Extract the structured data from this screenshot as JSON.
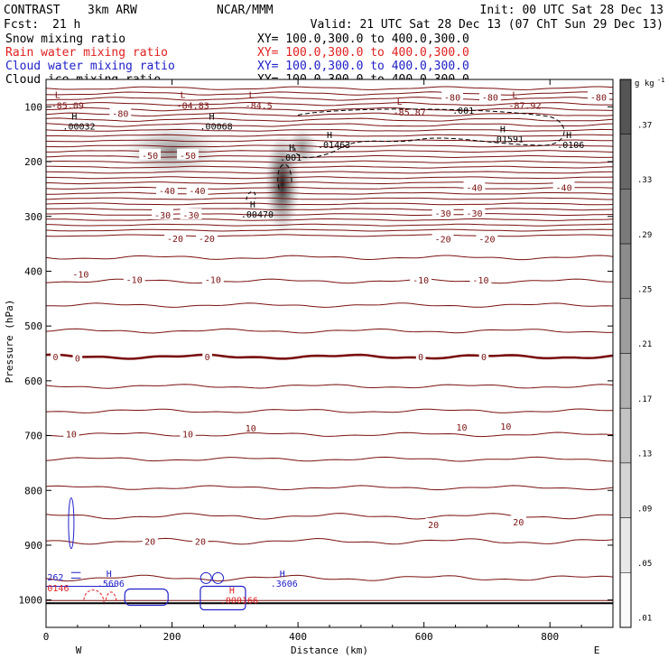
{
  "header": {
    "model": "CONTRAST",
    "grid": "3km ARW",
    "org": "NCAR/MMM",
    "init": "Init: 00 UTC Sat 28 Dec 13",
    "fcst_label": "Fcst:",
    "fcst_value": "21 h",
    "valid": "Valid: 21 UTC Sat 28 Dec 13 (07 ChT Sun 29 Dec 13)"
  },
  "fields": [
    {
      "name": "Snow mixing ratio",
      "xy": "XY= 100.0,300.0 to 400.0,300.0",
      "color": "#000000"
    },
    {
      "name": "Rain water mixing ratio",
      "xy": "XY= 100.0,300.0 to 400.0,300.0",
      "color": "#e02020"
    },
    {
      "name": "Cloud water mixing ratio",
      "xy": "XY= 100.0,300.0 to 400.0,300.0",
      "color": "#2020c8"
    },
    {
      "name": "Cloud ice mixing ratio",
      "xy": "XY= 100.0,300.0 to 400.0,300.0",
      "color": "#000000"
    }
  ],
  "colors": {
    "temperature": "#7a1010",
    "frame": "#000000",
    "rain": "#e02020",
    "cloud_water": "#2020c8"
  },
  "chart_data": {
    "type": "contour_cross_section",
    "xlabel": "Distance (km)",
    "ylabel": "Pressure (hPa)",
    "xlim": [
      0,
      900
    ],
    "ylim": [
      1050,
      50
    ],
    "xticks": [
      0,
      200,
      400,
      600,
      800
    ],
    "yticks": [
      100,
      200,
      300,
      400,
      500,
      600,
      700,
      800,
      900,
      1000
    ],
    "x_direction_labels": {
      "left": "W",
      "right": "E"
    },
    "temperature_contours": [
      {
        "level": -80,
        "labels": [
          {
            "x": 118,
            "p": 112
          },
          {
            "x": 645,
            "p": 82
          },
          {
            "x": 705,
            "p": 82
          },
          {
            "x": 877,
            "p": 82
          }
        ]
      },
      {
        "level": -50,
        "labels": [
          {
            "x": 165,
            "p": 188
          },
          {
            "x": 225,
            "p": 188
          }
        ]
      },
      {
        "level": -40,
        "labels": [
          {
            "x": 192,
            "p": 253
          },
          {
            "x": 240,
            "p": 253
          },
          {
            "x": 680,
            "p": 247
          },
          {
            "x": 822,
            "p": 247
          }
        ]
      },
      {
        "level": -30,
        "labels": [
          {
            "x": 185,
            "p": 297
          },
          {
            "x": 230,
            "p": 297
          },
          {
            "x": 630,
            "p": 294
          },
          {
            "x": 680,
            "p": 294
          }
        ]
      },
      {
        "level": -20,
        "labels": [
          {
            "x": 205,
            "p": 340
          },
          {
            "x": 255,
            "p": 340
          },
          {
            "x": 630,
            "p": 341
          },
          {
            "x": 700,
            "p": 341
          }
        ]
      },
      {
        "level": -10,
        "labels": [
          {
            "x": 55,
            "p": 405
          },
          {
            "x": 140,
            "p": 415
          },
          {
            "x": 265,
            "p": 415
          },
          {
            "x": 595,
            "p": 416
          },
          {
            "x": 690,
            "p": 416
          }
        ]
      },
      {
        "level": 0,
        "labels": [
          {
            "x": 15,
            "p": 556
          },
          {
            "x": 50,
            "p": 558
          },
          {
            "x": 256,
            "p": 556
          },
          {
            "x": 595,
            "p": 556
          },
          {
            "x": 695,
            "p": 556
          }
        ]
      },
      {
        "level": 10,
        "labels": [
          {
            "x": 40,
            "p": 697
          },
          {
            "x": 225,
            "p": 697
          },
          {
            "x": 325,
            "p": 686
          },
          {
            "x": 660,
            "p": 684
          },
          {
            "x": 730,
            "p": 683
          }
        ]
      },
      {
        "level": 20,
        "labels": [
          {
            "x": 165,
            "p": 893
          },
          {
            "x": 245,
            "p": 893
          },
          {
            "x": 615,
            "p": 862
          },
          {
            "x": 750,
            "p": 857
          }
        ]
      }
    ],
    "contour_label_texts": {
      "-80": "-80",
      "-50": "-50",
      "-40": "-40",
      "-30": "-30",
      "-20": "-20",
      "-10": "-10",
      "0": "0",
      "10": "10",
      "20": "20"
    },
    "minima_labels": [
      {
        "marker": "L",
        "value": "-85.09",
        "x": 14,
        "p": 84
      },
      {
        "marker": "L",
        "value": "-84.83",
        "x": 213,
        "p": 84
      },
      {
        "marker": "L",
        "value": "-84.5",
        "x": 322,
        "p": 84
      },
      {
        "marker": "L",
        "value": "-85.87",
        "x": 557,
        "p": 96
      },
      {
        "marker": "L",
        "value": "-87.92",
        "x": 740,
        "p": 84
      }
    ],
    "maxima_labels": [
      {
        "marker": "H",
        "value": ".00032",
        "x": 35,
        "p": 123
      },
      {
        "marker": "H",
        "value": ".00068",
        "x": 253,
        "p": 123
      },
      {
        "marker": "H",
        "value": ".001",
        "x": 380,
        "p": 180
      },
      {
        "marker": "H",
        "value": ".01463",
        "x": 440,
        "p": 157
      },
      {
        "marker": "H",
        "value": ".01591",
        "x": 715,
        "p": 146
      },
      {
        "marker": "H",
        "value": ".0106",
        "x": 820,
        "p": 157
      },
      {
        "marker": "H",
        "value": ".00470",
        "x": 318,
        "p": 284
      },
      {
        "marker": "H",
        "value": ".3606",
        "x": 365,
        "p": 958
      },
      {
        "marker": "H",
        "value": ".000166",
        "x": 285,
        "p": 988
      },
      {
        "marker": "H",
        "value": ".5606",
        "x": 90,
        "p": 958
      }
    ],
    "contour_values": [
      {
        "text": ".001",
        "x": 645,
        "p": 113
      },
      {
        "text": "262",
        "x": 2,
        "p": 964
      },
      {
        "text": "0146",
        "x": 2,
        "p": 984
      }
    ],
    "snow_maxima": [
      {
        "x": 200,
        "p": 180,
        "value": 0.13
      },
      {
        "x": 375,
        "p": 240,
        "value": 0.37
      }
    ],
    "colorbar": {
      "unit_main": "g kg",
      "unit_exp": "-1",
      "labels": [
        ".37",
        ".33",
        ".29",
        ".25",
        ".21",
        ".17",
        ".13",
        ".09",
        ".05",
        ".01"
      ]
    }
  }
}
